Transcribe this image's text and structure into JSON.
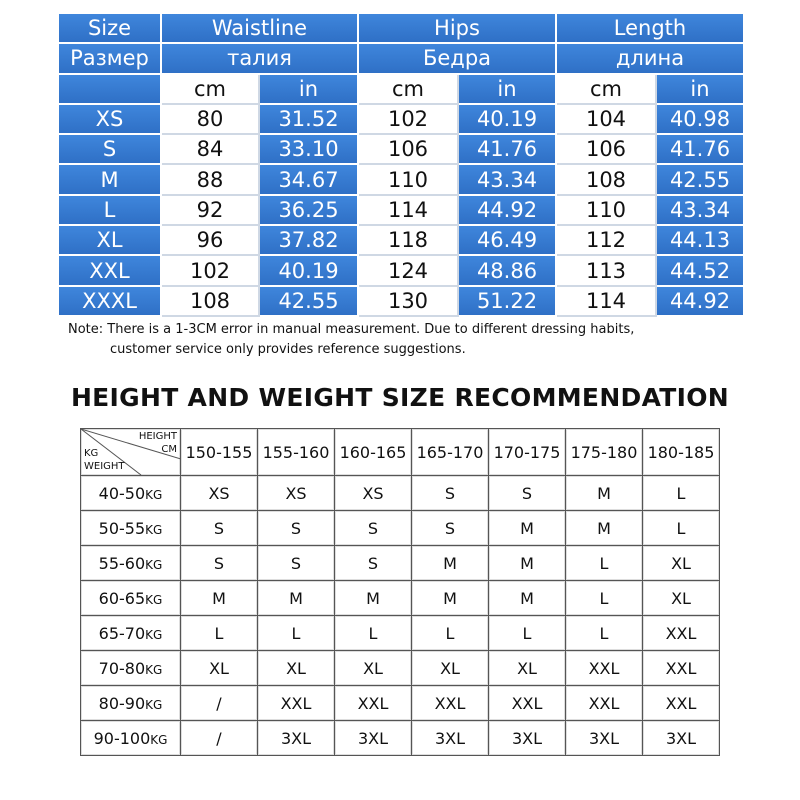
{
  "size_table": {
    "header": [
      "Size",
      "Waistline",
      "Hips",
      "Length"
    ],
    "header_ru": [
      "Размер",
      "талия",
      "Бедра",
      "длина"
    ],
    "units": [
      "cm",
      "in",
      "cm",
      "in",
      "cm",
      "in"
    ],
    "rows": [
      [
        "XS",
        "80",
        "31.52",
        "102",
        "40.19",
        "104",
        "40.98"
      ],
      [
        "S",
        "84",
        "33.10",
        "106",
        "41.76",
        "106",
        "41.76"
      ],
      [
        "M",
        "88",
        "34.67",
        "110",
        "43.34",
        "108",
        "42.55"
      ],
      [
        "L",
        "92",
        "36.25",
        "114",
        "44.92",
        "110",
        "43.34"
      ],
      [
        "XL",
        "96",
        "37.82",
        "118",
        "46.49",
        "112",
        "44.13"
      ],
      [
        "XXL",
        "102",
        "40.19",
        "124",
        "48.86",
        "113",
        "44.52"
      ],
      [
        "XXXL",
        "108",
        "42.55",
        "130",
        "51.22",
        "114",
        "44.92"
      ]
    ]
  },
  "note": [
    "Note: There is a 1-3CM error in manual measurement. Due to different dressing habits,",
    "customer service only provides reference suggestions."
  ],
  "recommendation": {
    "title": "HEIGHT AND WEIGHT SIZE RECOMMENDATION",
    "corner": {
      "height": "HEIGHT",
      "cm": "CM",
      "kg": "KG",
      "weight": "WEIGHT"
    },
    "heights": [
      "150-155",
      "155-160",
      "160-165",
      "165-170",
      "170-175",
      "175-180",
      "180-185"
    ],
    "rows": [
      {
        "range": "40-50",
        "unit": "KG",
        "sizes": [
          "XS",
          "XS",
          "XS",
          "S",
          "S",
          "M",
          "L"
        ]
      },
      {
        "range": "50-55",
        "unit": "KG",
        "sizes": [
          "S",
          "S",
          "S",
          "S",
          "M",
          "M",
          "L"
        ]
      },
      {
        "range": "55-60",
        "unit": "KG",
        "sizes": [
          "S",
          "S",
          "S",
          "M",
          "M",
          "L",
          "XL"
        ]
      },
      {
        "range": "60-65",
        "unit": "KG",
        "sizes": [
          "M",
          "M",
          "M",
          "M",
          "M",
          "L",
          "XL"
        ]
      },
      {
        "range": "65-70",
        "unit": "KG",
        "sizes": [
          "L",
          "L",
          "L",
          "L",
          "L",
          "L",
          "XXL"
        ]
      },
      {
        "range": "70-80",
        "unit": "KG",
        "sizes": [
          "XL",
          "XL",
          "XL",
          "XL",
          "XL",
          "XXL",
          "XXL"
        ]
      },
      {
        "range": "80-90",
        "unit": "KG",
        "sizes": [
          "/",
          "XXL",
          "XXL",
          "XXL",
          "XXL",
          "XXL",
          "XXL"
        ]
      },
      {
        "range": "90-100",
        "unit": "KG",
        "sizes": [
          "/",
          "3XL",
          "3XL",
          "3XL",
          "3XL",
          "3XL",
          "3XL"
        ]
      }
    ]
  }
}
